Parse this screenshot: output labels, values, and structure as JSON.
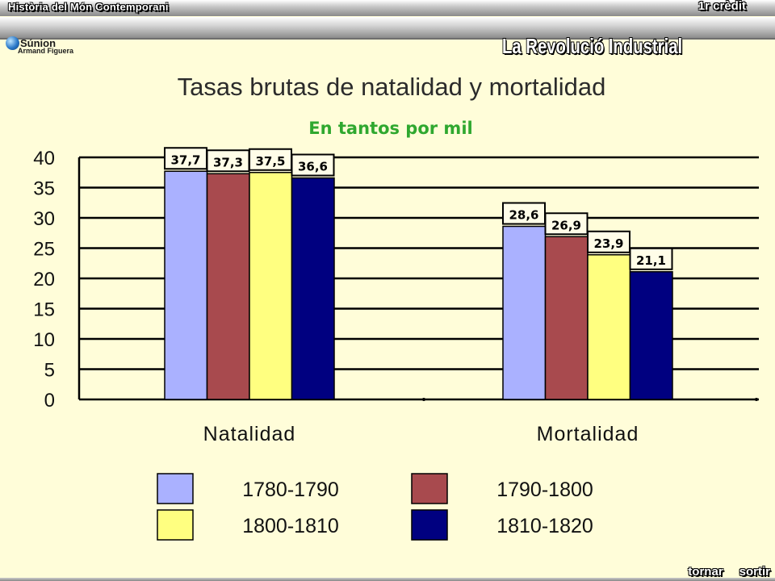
{
  "header": {
    "course": "Història del Món Contemporani",
    "credit": "1r crèdit",
    "topic": "La Revolució Industrial",
    "logo_name": "Súnion",
    "logo_author": "Armand Figuera"
  },
  "nav": {
    "back": "tornar",
    "exit": "sortir"
  },
  "colors": {
    "background": "#fffdd9",
    "subtitle": "#2fa82f",
    "series": [
      "#aab1ff",
      "#a84a4e",
      "#ffff80",
      "#000080"
    ]
  },
  "chart_data": {
    "type": "bar",
    "title": "Tasas brutas de natalidad y mortalidad",
    "subtitle": "En tantos por mil",
    "categories": [
      "Natalidad",
      "Mortalidad"
    ],
    "series": [
      {
        "name": "1780-1790",
        "values": [
          37.7,
          28.6
        ],
        "labels": [
          "37,7",
          "28,6"
        ]
      },
      {
        "name": "1790-1800",
        "values": [
          37.3,
          26.9
        ],
        "labels": [
          "37,3",
          "26,9"
        ]
      },
      {
        "name": "1800-1810",
        "values": [
          37.5,
          23.9
        ],
        "labels": [
          "37,5",
          "23,9"
        ]
      },
      {
        "name": "1810-1820",
        "values": [
          36.6,
          21.1
        ],
        "labels": [
          "36,6",
          "21,1"
        ]
      }
    ],
    "ylim": [
      0,
      40
    ],
    "yticks": [
      0,
      5,
      10,
      15,
      20,
      25,
      30,
      35,
      40
    ],
    "grid": true,
    "legend_position": "bottom"
  }
}
